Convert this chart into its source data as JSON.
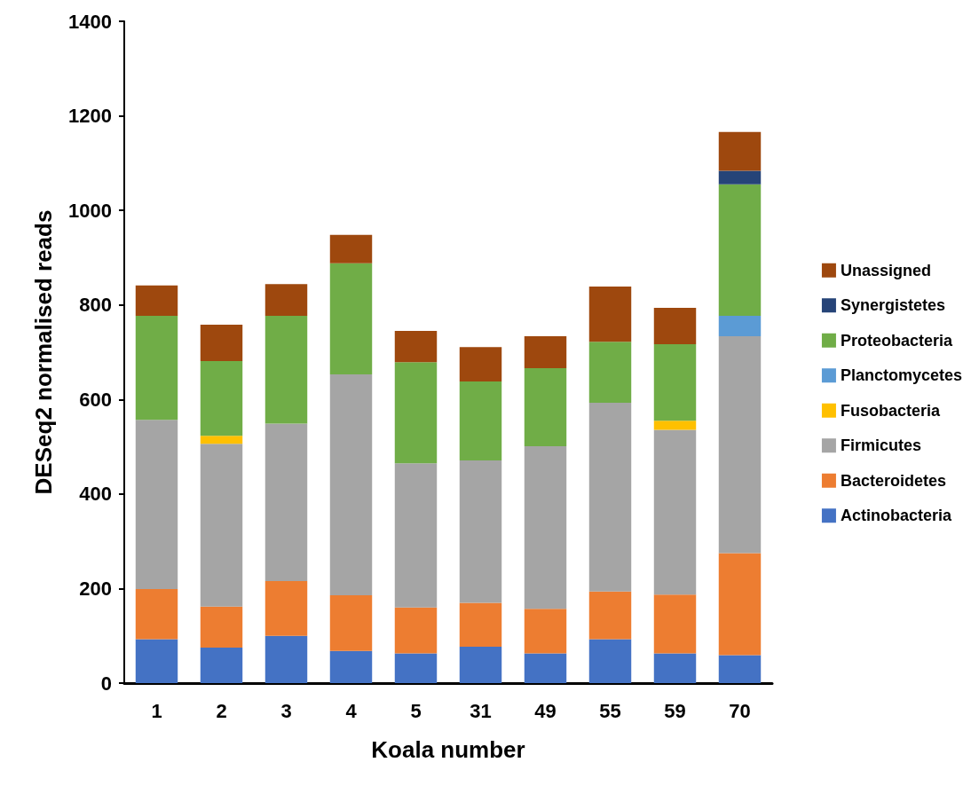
{
  "chart_data": {
    "type": "bar",
    "stacked": true,
    "xlabel": "Koala number",
    "ylabel": "DESeq2 normalised reads",
    "categories": [
      "1",
      "2",
      "3",
      "4",
      "5",
      "31",
      "49",
      "55",
      "59",
      "70"
    ],
    "ylim": [
      0,
      1400
    ],
    "yticks": [
      0,
      200,
      400,
      600,
      800,
      1000,
      1200,
      1400
    ],
    "grid": false,
    "legend": "right",
    "series": [
      {
        "name": "Actinobacteria",
        "color": "#4472c4",
        "values": [
          93,
          75,
          100,
          68,
          63,
          77,
          63,
          93,
          63,
          59
        ]
      },
      {
        "name": "Bacteroidetes",
        "color": "#ed7d31",
        "values": [
          106,
          87,
          116,
          118,
          97,
          93,
          94,
          101,
          124,
          216
        ]
      },
      {
        "name": "Firmicutes",
        "color": "#a5a5a5",
        "values": [
          358,
          344,
          333,
          467,
          305,
          301,
          344,
          399,
          349,
          459
        ]
      },
      {
        "name": "Fusobacteria",
        "color": "#ffc000",
        "values": [
          null,
          17,
          null,
          null,
          null,
          null,
          null,
          null,
          19,
          null
        ]
      },
      {
        "name": "Planctomycetes",
        "color": "#5b9bd5",
        "values": [
          null,
          null,
          null,
          null,
          null,
          null,
          null,
          null,
          null,
          43
        ]
      },
      {
        "name": "Proteobacteria",
        "color": "#70ad47",
        "values": [
          220,
          158,
          228,
          235,
          214,
          167,
          165,
          129,
          162,
          278
        ]
      },
      {
        "name": "Synergistetes",
        "color": "#264478",
        "values": [
          null,
          null,
          null,
          null,
          null,
          null,
          null,
          null,
          null,
          29
        ]
      },
      {
        "name": "Unassigned",
        "color": "#9e480e",
        "values": [
          64,
          77,
          67,
          60,
          66,
          73,
          68,
          117,
          77,
          82
        ]
      }
    ]
  }
}
